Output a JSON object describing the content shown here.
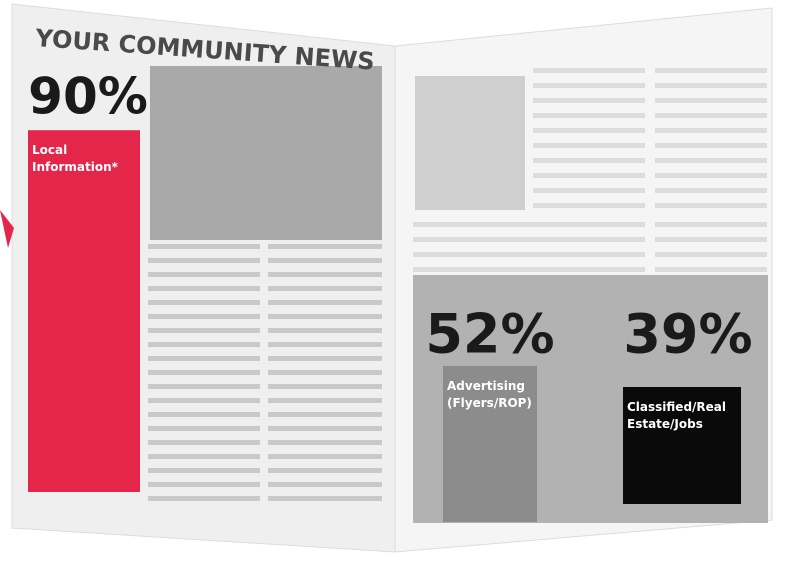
{
  "chart_data": {
    "type": "bar",
    "title": "YOUR COMMUNITY NEWS",
    "categories": [
      "Local Information*",
      "Advertising (Flyers/ROP)",
      "Classified/Real Estate/Jobs"
    ],
    "values": [
      90,
      52,
      39
    ],
    "value_labels": [
      "90%",
      "52%",
      "39%"
    ],
    "colors": [
      "#e5264b",
      "#8c8c8c",
      "#0a0a0a"
    ]
  }
}
